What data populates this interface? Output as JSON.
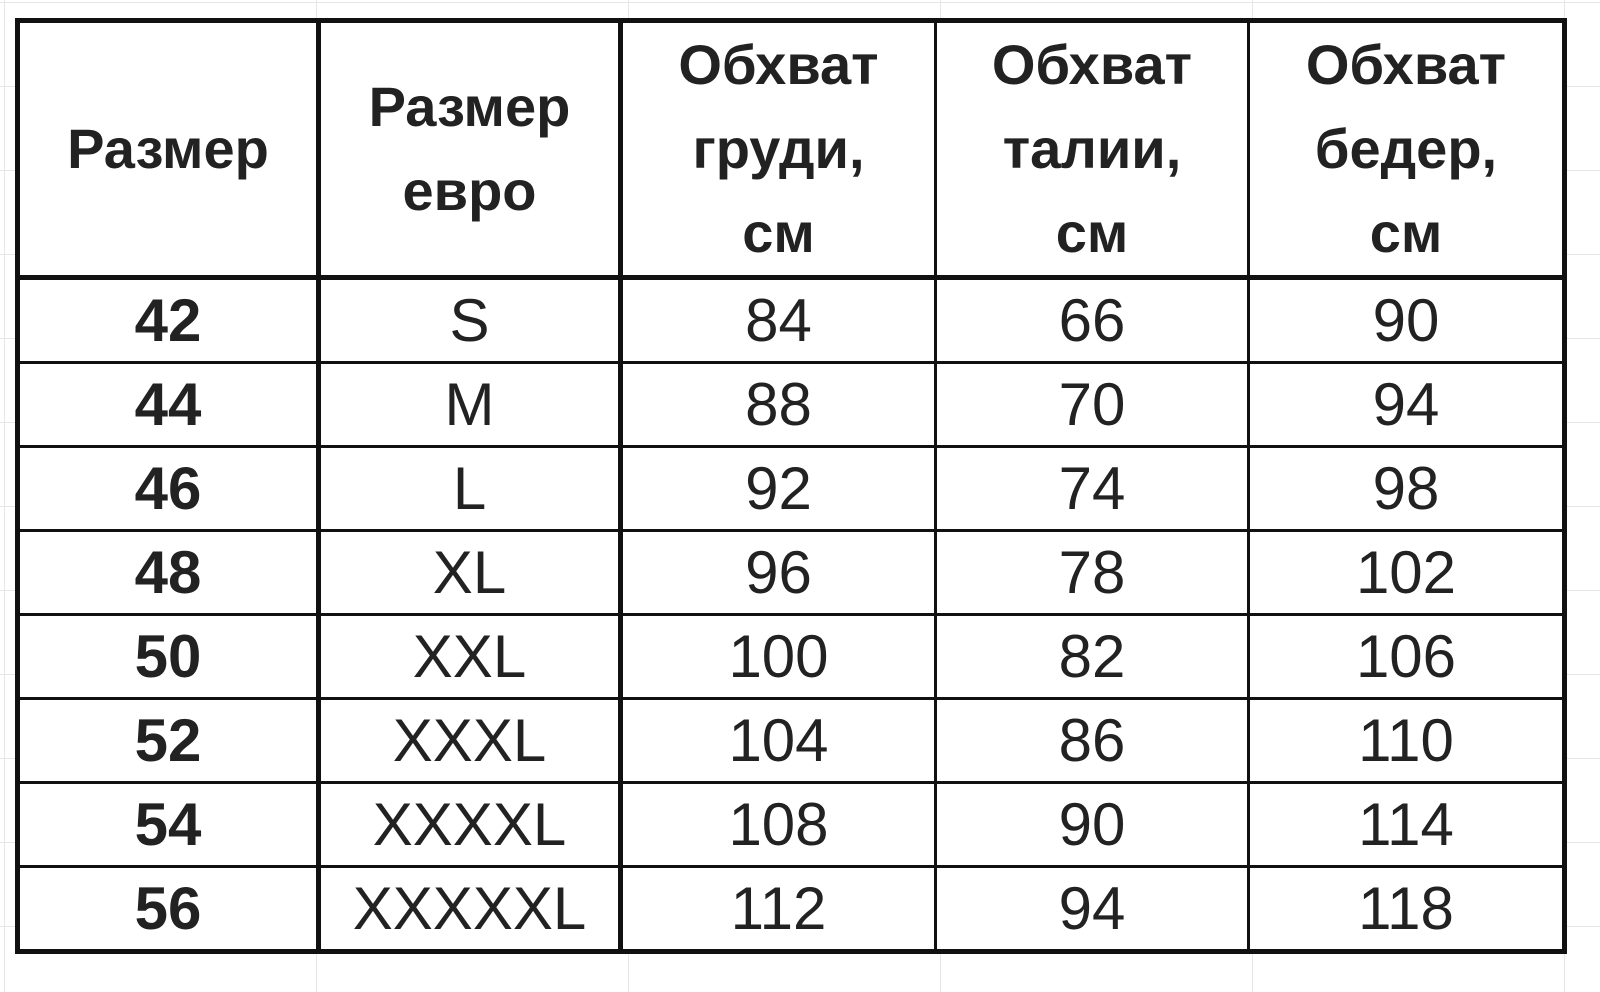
{
  "headers": [
    [
      "Размер"
    ],
    [
      "Размер",
      "евро"
    ],
    [
      "Обхват",
      "груди,",
      "см"
    ],
    [
      "Обхват",
      "талии,",
      "см"
    ],
    [
      "Обхват",
      "бедер,",
      "см"
    ]
  ],
  "rows": [
    [
      "42",
      "S",
      "84",
      "66",
      "90"
    ],
    [
      "44",
      "M",
      "88",
      "70",
      "94"
    ],
    [
      "46",
      "L",
      "92",
      "74",
      "98"
    ],
    [
      "48",
      "XL",
      "96",
      "78",
      "102"
    ],
    [
      "50",
      "XXL",
      "100",
      "82",
      "106"
    ],
    [
      "52",
      "XXXL",
      "104",
      "86",
      "110"
    ],
    [
      "54",
      "XXXXL",
      "108",
      "90",
      "114"
    ],
    [
      "56",
      "XXXXXL",
      "112",
      "94",
      "118"
    ]
  ]
}
